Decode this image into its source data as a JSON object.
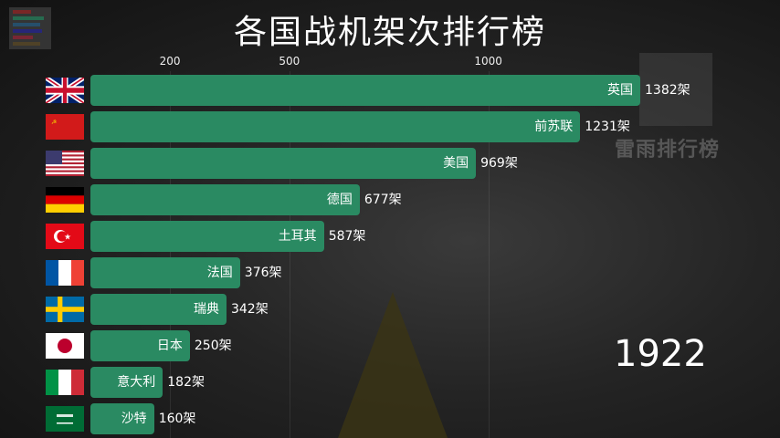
{
  "title": "各国战机架次排行榜",
  "watermark": "雷雨排行榜",
  "year": "1922",
  "chart_data": {
    "type": "bar",
    "orientation": "horizontal",
    "title": "各国战机架次排行榜",
    "unit": "架",
    "xticks": [
      200,
      500,
      1000
    ],
    "xlim": [
      0,
      1382
    ],
    "bar_color": "#2a8a62",
    "categories": [
      "英国",
      "前苏联",
      "美国",
      "德国",
      "土耳其",
      "法国",
      "瑞典",
      "日本",
      "意大利",
      "沙特"
    ],
    "values": [
      1382,
      1231,
      969,
      677,
      587,
      376,
      342,
      250,
      182,
      160
    ],
    "value_labels": [
      "1382架",
      "1231架",
      "969架",
      "677架",
      "587架",
      "376架",
      "342架",
      "250架",
      "182架",
      "160架"
    ],
    "flags": [
      "uk",
      "ussr",
      "usa",
      "germany",
      "turkey",
      "france",
      "sweden",
      "japan",
      "italy",
      "saudi"
    ]
  }
}
